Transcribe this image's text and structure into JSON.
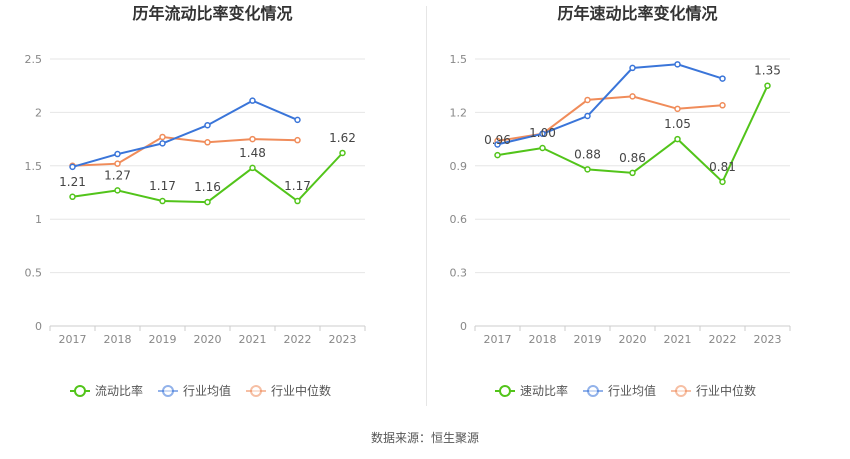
{
  "source_note": "数据来源：恒生聚源",
  "chart_data": [
    {
      "type": "line",
      "title": "历年流动比率变化情况",
      "categories": [
        "2017",
        "2018",
        "2019",
        "2020",
        "2021",
        "2022",
        "2023"
      ],
      "ylim": [
        0,
        2.5
      ],
      "yticks": [
        "0",
        "0.5",
        "1",
        "1.5",
        "2",
        "2.5"
      ],
      "ytick_values": [
        0,
        0.5,
        1,
        1.5,
        2,
        2.5
      ],
      "grid": true,
      "legend_position": "bottom",
      "series": [
        {
          "name": "流动比率",
          "color": "#52c41a",
          "values": [
            1.21,
            1.27,
            1.17,
            1.16,
            1.48,
            1.17,
            1.62
          ],
          "labels": [
            "1.21",
            "1.27",
            "1.17",
            "1.16",
            "1.48",
            "1.17",
            "1.62"
          ]
        },
        {
          "name": "行业均值",
          "color": "#3a75d9",
          "values": [
            1.49,
            1.61,
            1.71,
            1.88,
            2.11,
            1.93,
            null
          ]
        },
        {
          "name": "行业中位数",
          "color": "#f08c5a",
          "values": [
            1.5,
            1.52,
            1.77,
            1.72,
            1.75,
            1.74,
            null
          ]
        }
      ]
    },
    {
      "type": "line",
      "title": "历年速动比率变化情况",
      "categories": [
        "2017",
        "2018",
        "2019",
        "2020",
        "2021",
        "2022",
        "2023"
      ],
      "ylim": [
        0,
        1.5
      ],
      "yticks": [
        "0",
        "0.3",
        "0.6",
        "0.9",
        "1.2",
        "1.5"
      ],
      "ytick_values": [
        0,
        0.3,
        0.6,
        0.9,
        1.2,
        1.5
      ],
      "grid": true,
      "legend_position": "bottom",
      "series": [
        {
          "name": "速动比率",
          "color": "#52c41a",
          "values": [
            0.96,
            1.0,
            0.88,
            0.86,
            1.05,
            0.81,
            1.35
          ],
          "labels": [
            "0.96",
            "1.00",
            "0.88",
            "0.86",
            "1.05",
            "0.81",
            "1.35"
          ]
        },
        {
          "name": "行业均值",
          "color": "#3a75d9",
          "values": [
            1.02,
            1.08,
            1.18,
            1.45,
            1.47,
            1.39,
            null
          ]
        },
        {
          "name": "行业中位数",
          "color": "#f08c5a",
          "values": [
            1.04,
            1.08,
            1.27,
            1.29,
            1.22,
            1.24,
            null
          ]
        }
      ]
    }
  ]
}
